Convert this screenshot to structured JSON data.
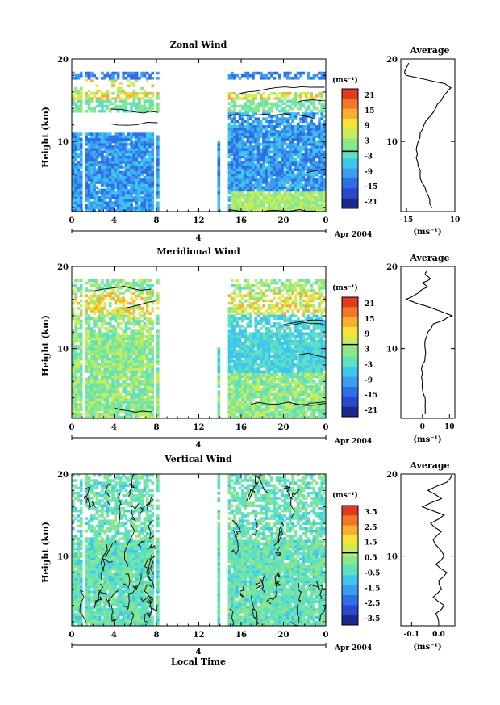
{
  "chart_data": [
    {
      "type": "heatmap",
      "title": "Zonal Wind",
      "ylabel": "Height (km)",
      "xlabel": "",
      "date_label": "Apr 2004",
      "day_label": "4",
      "x_ticks": [
        "0",
        "4",
        "8",
        "12",
        "16",
        "20",
        "0"
      ],
      "y_ticks": [
        "10",
        "20"
      ],
      "ylim": [
        1.5,
        20
      ],
      "colorbar": {
        "unit": "(ms⁻¹)",
        "ticks": [
          "21",
          "15",
          "9",
          "3",
          "-3",
          "-9",
          "-15",
          "-21"
        ],
        "highlight": "-3"
      },
      "average": {
        "title": "Average",
        "xlabel": "(ms⁻¹)",
        "x_ticks": [
          "-15",
          "10"
        ],
        "xlim": [
          -18,
          10
        ],
        "y_ticks": [
          "10",
          "20"
        ],
        "profile": [
          [
            2,
            -2
          ],
          [
            3,
            -3
          ],
          [
            4,
            -5
          ],
          [
            5,
            -7
          ],
          [
            6,
            -8
          ],
          [
            7,
            -9
          ],
          [
            8,
            -10
          ],
          [
            9,
            -10
          ],
          [
            10,
            -9
          ],
          [
            11,
            -8
          ],
          [
            12,
            -6
          ],
          [
            13,
            -3
          ],
          [
            14,
            0
          ],
          [
            15,
            3
          ],
          [
            16,
            6
          ],
          [
            16.5,
            8
          ],
          [
            17,
            5
          ],
          [
            17.5,
            -5
          ],
          [
            18,
            -15
          ],
          [
            18.5,
            -16
          ],
          [
            19,
            -15
          ],
          [
            19.5,
            -14
          ]
        ]
      }
    },
    {
      "type": "heatmap",
      "title": "Meridional Wind",
      "ylabel": "Height (km)",
      "xlabel": "",
      "date_label": "Apr 2004",
      "day_label": "4",
      "x_ticks": [
        "0",
        "4",
        "8",
        "12",
        "16",
        "20",
        "0"
      ],
      "y_ticks": [
        "10",
        "20"
      ],
      "ylim": [
        1.5,
        20
      ],
      "colorbar": {
        "unit": "(ms⁻¹)",
        "ticks": [
          "21",
          "15",
          "9",
          "3",
          "-3",
          "-9",
          "-15",
          "-21"
        ],
        "highlight": "3"
      },
      "average": {
        "title": "Average",
        "xlabel": "(ms⁻¹)",
        "x_ticks": [
          "0",
          "10"
        ],
        "xlim": [
          -8,
          12
        ],
        "y_ticks": [
          "10",
          "20"
        ],
        "profile": [
          [
            2,
            1
          ],
          [
            3,
            1
          ],
          [
            4,
            1
          ],
          [
            5,
            0
          ],
          [
            6,
            0
          ],
          [
            7,
            0
          ],
          [
            8,
            0
          ],
          [
            9,
            1
          ],
          [
            10,
            1
          ],
          [
            11,
            1
          ],
          [
            12,
            2
          ],
          [
            13,
            4
          ],
          [
            13.5,
            8
          ],
          [
            14,
            11
          ],
          [
            14.5,
            7
          ],
          [
            15,
            3
          ],
          [
            15.5,
            -2
          ],
          [
            16,
            -6
          ],
          [
            16.5,
            -3
          ],
          [
            17,
            -1
          ],
          [
            17.5,
            2
          ],
          [
            18,
            0
          ],
          [
            18.5,
            3
          ],
          [
            19,
            1
          ],
          [
            19.5,
            2
          ]
        ]
      }
    },
    {
      "type": "heatmap",
      "title": "Vertical Wind",
      "ylabel": "Height (km)",
      "xlabel": "Local Time",
      "date_label": "Apr 2004",
      "day_label": "4",
      "x_ticks": [
        "0",
        "4",
        "8",
        "12",
        "16",
        "20",
        "0"
      ],
      "y_ticks": [
        "10",
        "20"
      ],
      "ylim": [
        1.5,
        20
      ],
      "colorbar": {
        "unit": "(ms⁻¹)",
        "ticks": [
          "3.5",
          "2.5",
          "1.5",
          "0.5",
          "-0.5",
          "-1.5",
          "-2.5",
          "-3.5"
        ],
        "highlight": "0.5"
      },
      "average": {
        "title": "Average",
        "xlabel": "(ms⁻¹)",
        "x_ticks": [
          "-0.1",
          "0.0"
        ],
        "xlim": [
          -0.14,
          0.06
        ],
        "y_ticks": [
          "10",
          "20"
        ],
        "profile": [
          [
            2,
            0.0
          ],
          [
            3,
            -0.01
          ],
          [
            4,
            0.02
          ],
          [
            5,
            -0.02
          ],
          [
            6,
            0.01
          ],
          [
            7,
            0.0
          ],
          [
            8,
            0.03
          ],
          [
            9,
            -0.01
          ],
          [
            10,
            0.02
          ],
          [
            11,
            0.0
          ],
          [
            12,
            -0.02
          ],
          [
            13,
            0.01
          ],
          [
            14,
            -0.03
          ],
          [
            15,
            0.02
          ],
          [
            16,
            -0.06
          ],
          [
            17,
            0.01
          ],
          [
            18,
            -0.04
          ],
          [
            19,
            0.03
          ],
          [
            20,
            0.05
          ]
        ]
      }
    }
  ],
  "colors": {
    "palette": [
      "#1a2a8c",
      "#2a48c8",
      "#2f6fe6",
      "#3c9cf0",
      "#3fc6ee",
      "#5fe0c0",
      "#8ce68a",
      "#c8ec5a",
      "#f2e43a",
      "#f6b030",
      "#f07828",
      "#e23a22"
    ]
  }
}
